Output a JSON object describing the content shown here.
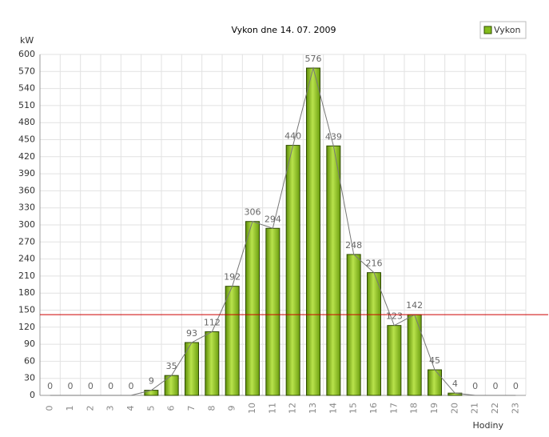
{
  "chart_data": {
    "type": "bar",
    "title": "Vykon dne 14. 07. 2009",
    "y_label": "kW",
    "x_label": "Hodiny",
    "categories": [
      "0",
      "1",
      "2",
      "3",
      "4",
      "5",
      "6",
      "7",
      "8",
      "9",
      "10",
      "11",
      "12",
      "13",
      "14",
      "15",
      "16",
      "17",
      "18",
      "19",
      "20",
      "21",
      "22",
      "23"
    ],
    "series": [
      {
        "name": "Vykon",
        "color": "#84bd1c",
        "values": [
          0,
          0,
          0,
          0,
          0,
          9,
          35,
          93,
          112,
          192,
          306,
          294,
          440,
          576,
          439,
          248,
          216,
          123,
          142,
          45,
          4,
          0,
          0,
          0
        ]
      }
    ],
    "reference_line": {
      "value": 142,
      "color": "#cc0000"
    },
    "ylim": [
      0,
      600
    ],
    "yticks": [
      0,
      30,
      60,
      90,
      120,
      150,
      180,
      210,
      240,
      270,
      300,
      330,
      360,
      390,
      420,
      450,
      480,
      510,
      540,
      570,
      600
    ],
    "grid": true,
    "legend": "top-right"
  }
}
